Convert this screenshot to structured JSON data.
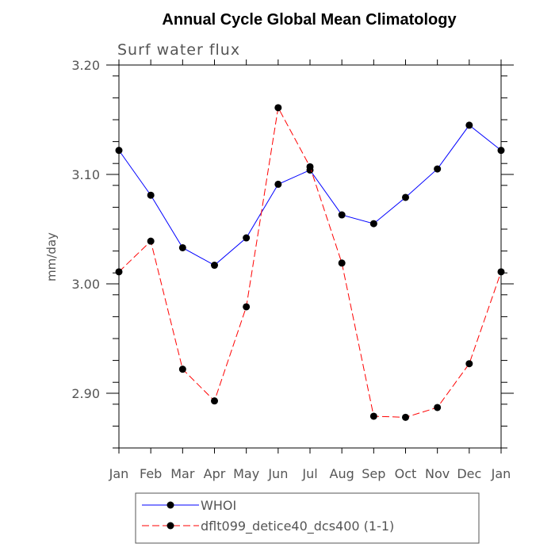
{
  "chart_data": {
    "type": "line",
    "title": "Annual Cycle Global Mean Climatology",
    "subtitle": "Surf water flux",
    "xlabel": "",
    "ylabel": "mm/day",
    "categories": [
      "Jan",
      "Feb",
      "Mar",
      "Apr",
      "May",
      "Jun",
      "Jul",
      "Aug",
      "Sep",
      "Oct",
      "Nov",
      "Dec",
      "Jan"
    ],
    "ylim": [
      2.85,
      3.2
    ],
    "yticks_major": [
      2.9,
      3.0,
      3.1,
      3.2
    ],
    "yticks_major_labels": [
      "2.90",
      "3.00",
      "3.10",
      "3.20"
    ],
    "yticks_minor_step": 0.02,
    "grid": false,
    "legend_position": "bottom",
    "series": [
      {
        "name": "WHOI",
        "color": "#0000ff",
        "style": "solid",
        "values": [
          3.122,
          3.081,
          3.033,
          3.017,
          3.042,
          3.091,
          3.104,
          3.063,
          3.055,
          3.079,
          3.105,
          3.145,
          3.122
        ]
      },
      {
        "name": "dflt099_detice40_dcs400 (1-1)",
        "color": "#ff0000",
        "style": "dashed",
        "values": [
          3.011,
          3.039,
          2.922,
          2.893,
          2.979,
          3.161,
          3.107,
          3.019,
          2.879,
          2.878,
          2.887,
          2.927,
          3.011
        ]
      }
    ]
  }
}
